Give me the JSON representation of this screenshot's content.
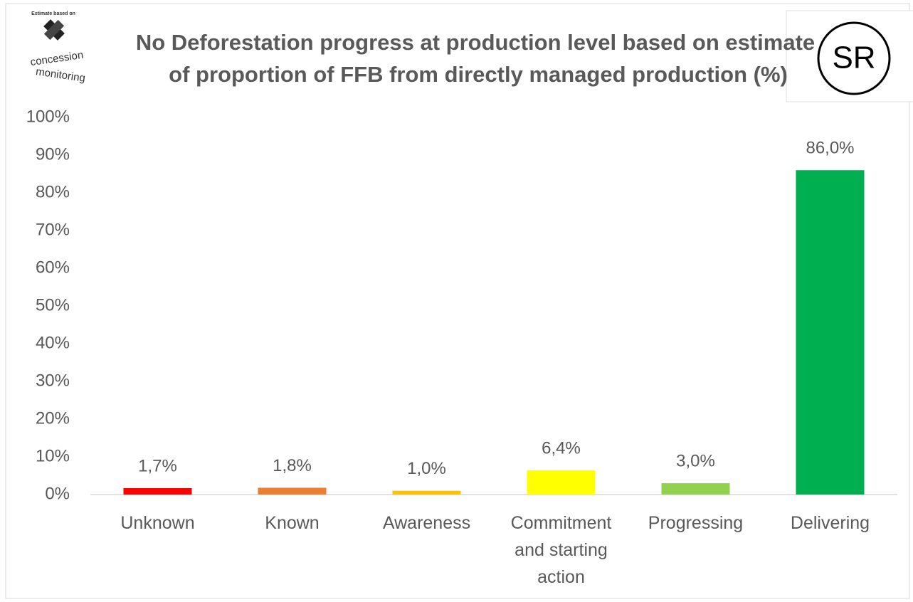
{
  "chart_data": {
    "type": "bar",
    "title": [
      "No Deforestation progress at production level based on estimate",
      "of proportion of FFB from directly managed production (%)"
    ],
    "logo": [
      "Estimate based on",
      "concession",
      "monitoring"
    ],
    "badge": "SR",
    "categories": [
      "Unknown",
      "Known",
      "Awareness",
      "Commitment and starting action",
      "Progressing",
      "Delivering"
    ],
    "values": [
      1.7,
      1.8,
      1.0,
      6.4,
      3.0,
      86.0
    ],
    "value_labels": [
      "1,7%",
      "1,8%",
      "1,0%",
      "6,4%",
      "3,0%",
      "86,0%"
    ],
    "colors": [
      "#ff0000",
      "#ed7d31",
      "#ffc000",
      "#ffff00",
      "#92d050",
      "#00b050"
    ],
    "ylim": [
      0,
      100
    ],
    "yticks": [
      {
        "value": 0,
        "label": "0%"
      },
      {
        "value": 10,
        "label": "10%"
      },
      {
        "value": 20,
        "label": "20%"
      },
      {
        "value": 30,
        "label": "30%"
      },
      {
        "value": 40,
        "label": "40%"
      },
      {
        "value": 50,
        "label": "50%"
      },
      {
        "value": 60,
        "label": "60%"
      },
      {
        "value": 70,
        "label": "70%"
      },
      {
        "value": 80,
        "label": "80%"
      },
      {
        "value": 90,
        "label": "90%"
      },
      {
        "value": 100,
        "label": "100%"
      }
    ],
    "grid": false
  }
}
